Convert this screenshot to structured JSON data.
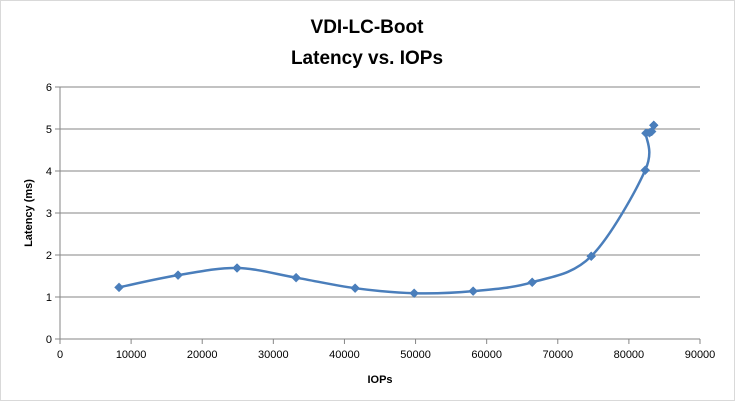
{
  "chart_data": {
    "type": "scatter",
    "title": [
      "VDI-LC-Boot",
      "Latency vs. IOPs"
    ],
    "xlabel": "IOPs",
    "ylabel": "Latency (ms)",
    "xlim": [
      0,
      90000
    ],
    "ylim": [
      0,
      6
    ],
    "x_ticks": [
      0,
      10000,
      20000,
      30000,
      40000,
      50000,
      60000,
      70000,
      80000,
      90000
    ],
    "y_ticks": [
      0,
      1,
      2,
      3,
      4,
      5,
      6
    ],
    "grid": "horizontal",
    "legend": "none",
    "line_style": "smoothed",
    "marker": "diamond",
    "series_color": "#4a7ebb",
    "series": [
      {
        "points": [
          [
            8300,
            1.23
          ],
          [
            16600,
            1.52
          ],
          [
            24900,
            1.69
          ],
          [
            33200,
            1.46
          ],
          [
            41500,
            1.21
          ],
          [
            49800,
            1.09
          ],
          [
            58100,
            1.14
          ],
          [
            66400,
            1.35
          ],
          [
            74700,
            1.97
          ],
          [
            82300,
            4.02
          ],
          [
            82400,
            4.9
          ],
          [
            82900,
            4.91
          ],
          [
            83200,
            4.94
          ],
          [
            83500,
            5.09
          ]
        ]
      }
    ]
  }
}
